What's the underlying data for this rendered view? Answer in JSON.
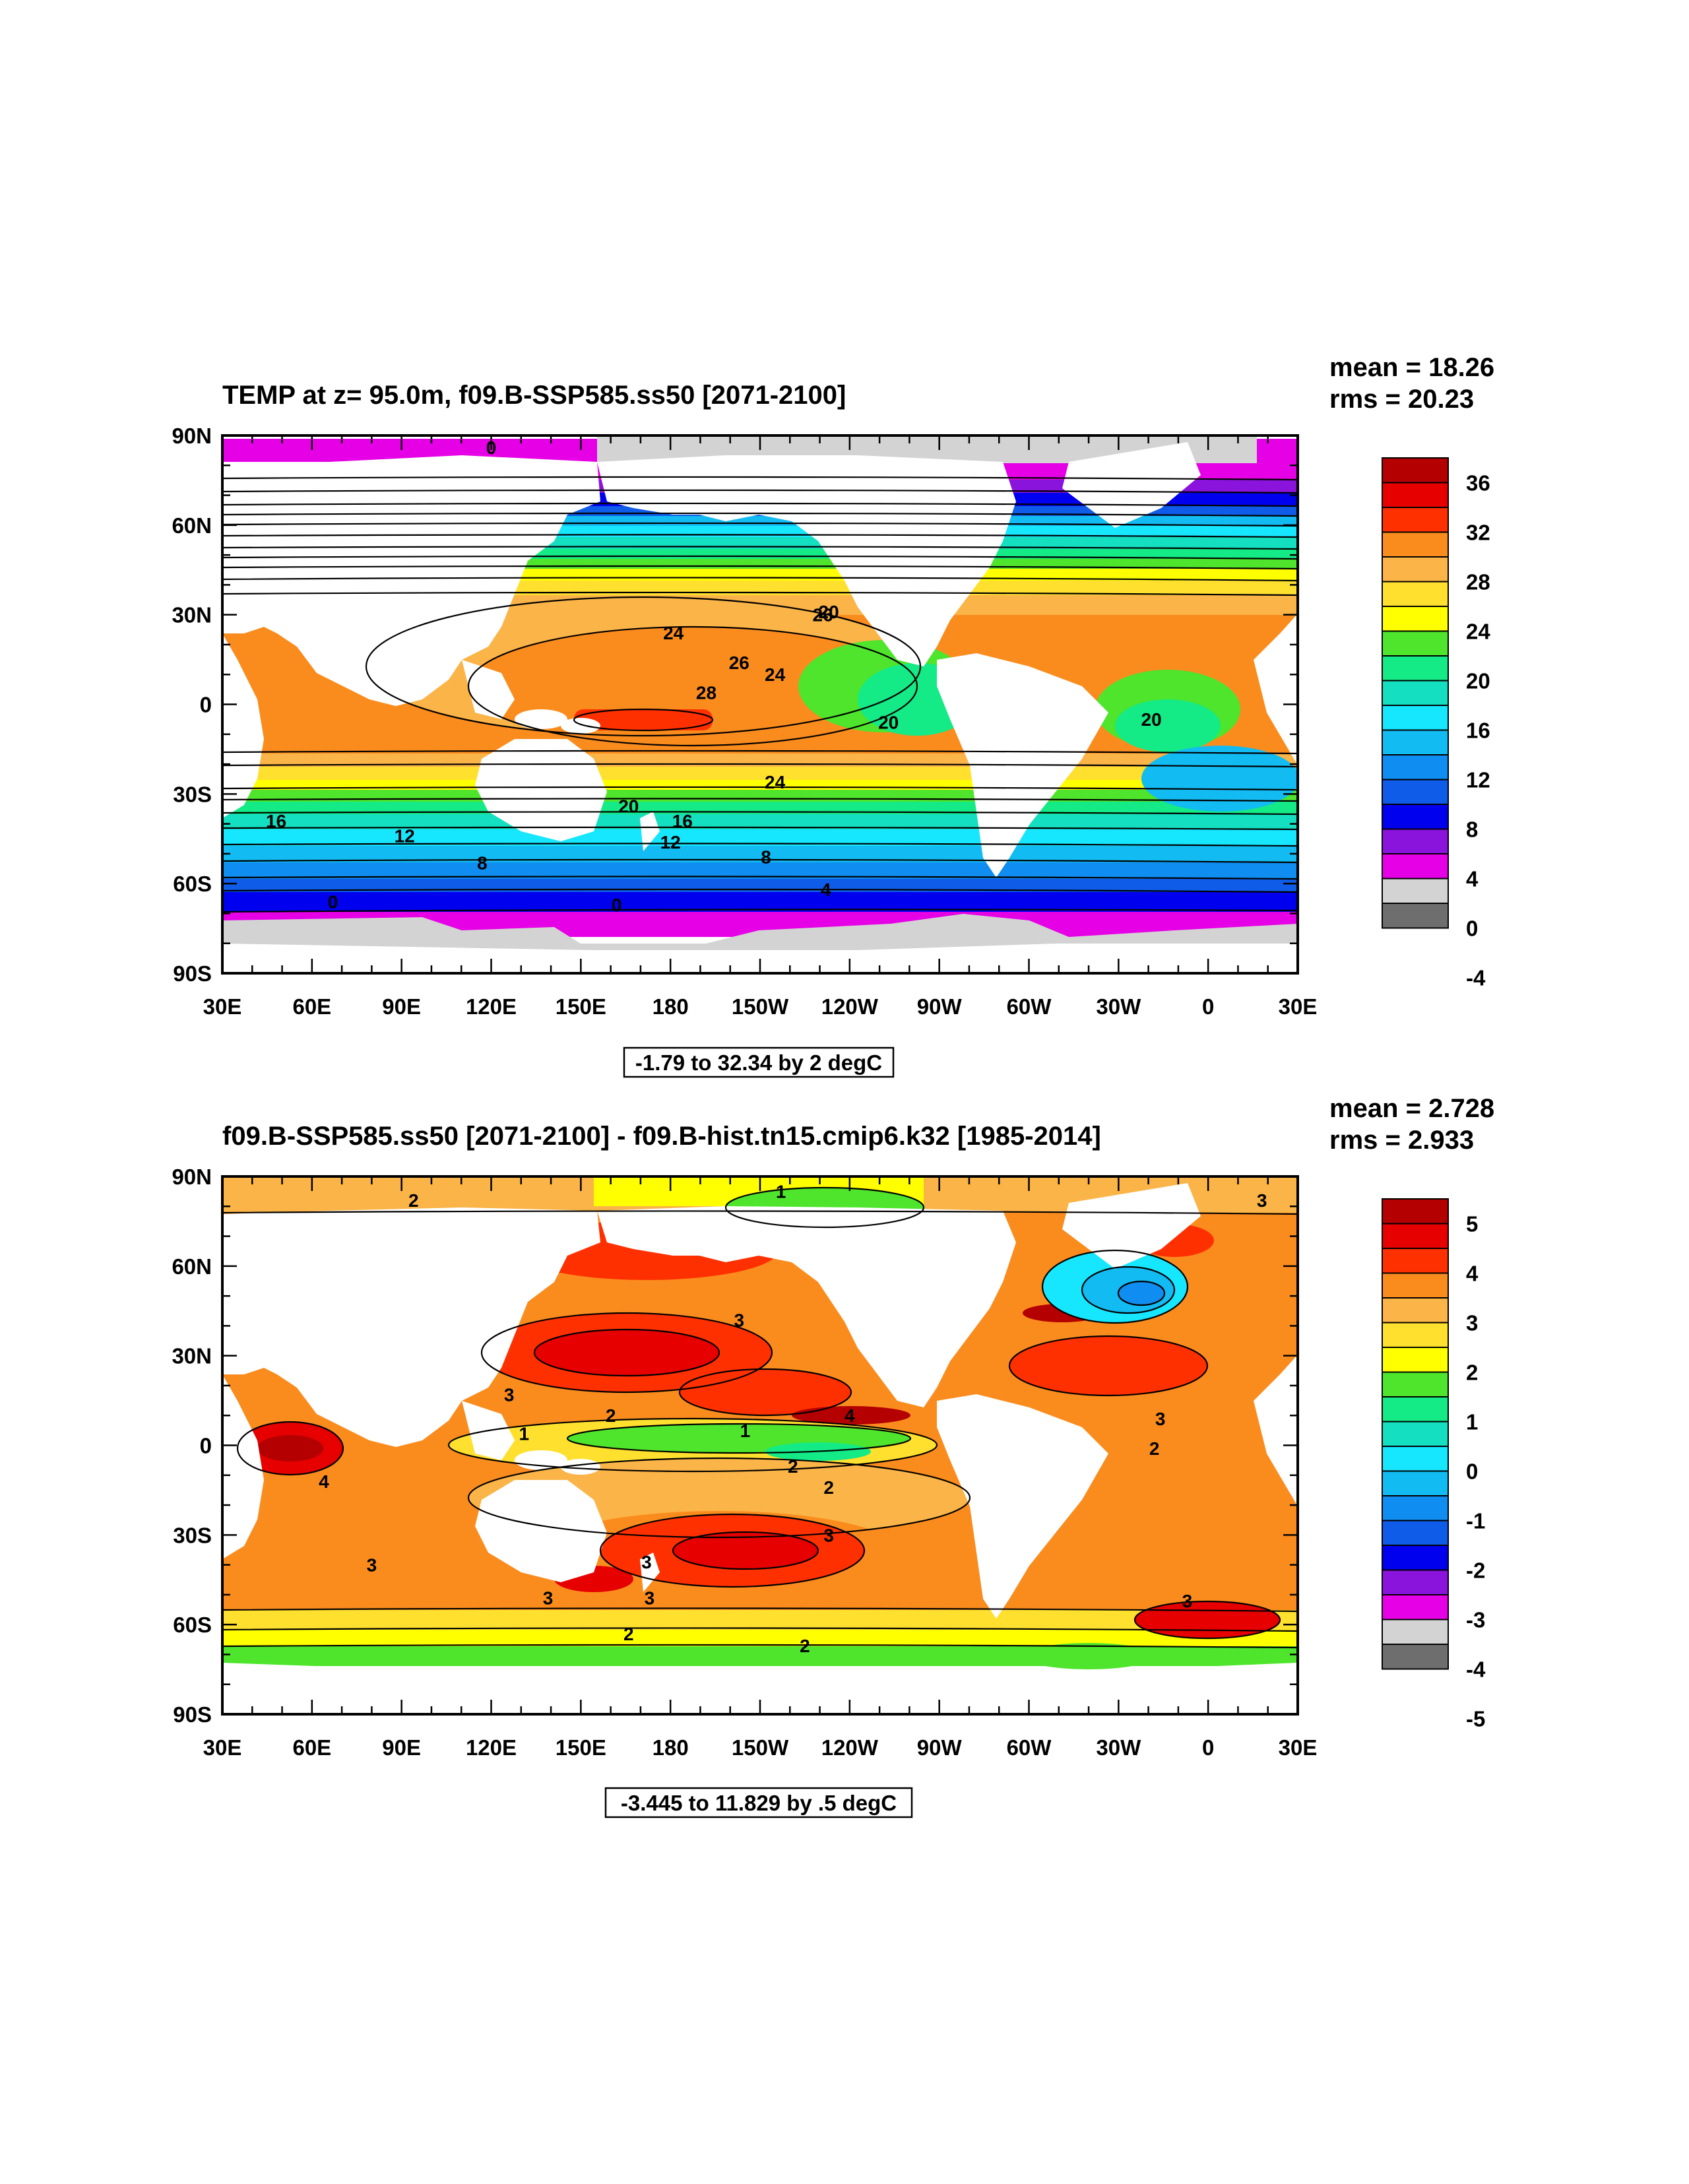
{
  "chart_data": [
    {
      "type": "heatmap",
      "title": "TEMP at z=  95.0m, f09.B-SSP585.ss50 [2071-2100]",
      "stats": [
        "mean = 18.26",
        "rms = 20.23"
      ],
      "contour_info": "-1.79 to 32.34 by 2 degC",
      "x_ticks": [
        "30E",
        "60E",
        "90E",
        "120E",
        "150E",
        "180",
        "150W",
        "120W",
        "90W",
        "60W",
        "30W",
        "0",
        "30E"
      ],
      "y_ticks": [
        "90N",
        "60N",
        "30N",
        "0",
        "30S",
        "60S",
        "90S"
      ],
      "xlim": [
        30,
        390
      ],
      "ylim": [
        -90,
        90
      ],
      "contour_labels": [
        {
          "text": "0",
          "lon": 120,
          "lat": 86
        },
        {
          "text": "24",
          "lon": 181,
          "lat": 24
        },
        {
          "text": "26",
          "lon": 231,
          "lat": 30
        },
        {
          "text": "20",
          "lon": 233,
          "lat": 31
        },
        {
          "text": "26",
          "lon": 203,
          "lat": 14
        },
        {
          "text": "24",
          "lon": 215,
          "lat": 10
        },
        {
          "text": "28",
          "lon": 192,
          "lat": 4
        },
        {
          "text": "20",
          "lon": 253,
          "lat": -6
        },
        {
          "text": "20",
          "lon": 341,
          "lat": -5
        },
        {
          "text": "24",
          "lon": 215,
          "lat": -26
        },
        {
          "text": "20",
          "lon": 166,
          "lat": -34
        },
        {
          "text": "16",
          "lon": 48,
          "lat": -39
        },
        {
          "text": "16",
          "lon": 184,
          "lat": -39
        },
        {
          "text": "12",
          "lon": 91,
          "lat": -44
        },
        {
          "text": "12",
          "lon": 180,
          "lat": -46
        },
        {
          "text": "8",
          "lon": 117,
          "lat": -53
        },
        {
          "text": "8",
          "lon": 212,
          "lat": -51
        },
        {
          "text": "4",
          "lon": 232,
          "lat": -62
        },
        {
          "text": "0",
          "lon": 67,
          "lat": -66
        },
        {
          "text": "0",
          "lon": 162,
          "lat": -67
        }
      ],
      "colorbar": {
        "labels": [
          "36",
          "32",
          "28",
          "24",
          "20",
          "16",
          "12",
          "8",
          "4",
          "0",
          "-4"
        ],
        "colors": [
          "#b40000",
          "#e60000",
          "#ff3000",
          "#fa8c1e",
          "#fbb447",
          "#ffe02e",
          "#ffff00",
          "#4ee52c",
          "#14ea86",
          "#14dfc0",
          "#17e6ff",
          "#12bbf2",
          "#0f8df0",
          "#0f5ce8",
          "#0000ef",
          "#8a14db",
          "#e600e6",
          "#d3d3d3",
          "#6e6e6e"
        ]
      }
    },
    {
      "type": "heatmap",
      "title": "f09.B-SSP585.ss50 [2071-2100] - f09.B-hist.tn15.cmip6.k32 [1985-2014]",
      "stats": [
        "mean = 2.728",
        "rms = 2.933"
      ],
      "contour_info": "-3.445 to 11.829 by .5 degC",
      "x_ticks": [
        "30E",
        "60E",
        "90E",
        "120E",
        "150E",
        "180",
        "150W",
        "120W",
        "90W",
        "60W",
        "30W",
        "0",
        "30E"
      ],
      "y_ticks": [
        "90N",
        "60N",
        "30N",
        "0",
        "30S",
        "60S",
        "90S"
      ],
      "xlim": [
        30,
        390
      ],
      "ylim": [
        -90,
        90
      ],
      "contour_labels": [
        {
          "text": "2",
          "lon": 94,
          "lat": 82
        },
        {
          "text": "1",
          "lon": 217,
          "lat": 85
        },
        {
          "text": "3",
          "lon": 378,
          "lat": 82
        },
        {
          "text": "3",
          "lon": 203,
          "lat": 42
        },
        {
          "text": "3",
          "lon": 126,
          "lat": 17
        },
        {
          "text": "2",
          "lon": 160,
          "lat": 10
        },
        {
          "text": "1",
          "lon": 131,
          "lat": 4
        },
        {
          "text": "1",
          "lon": 205,
          "lat": 5
        },
        {
          "text": "4",
          "lon": 240,
          "lat": 10
        },
        {
          "text": "3",
          "lon": 344,
          "lat": 9
        },
        {
          "text": "2",
          "lon": 342,
          "lat": -1
        },
        {
          "text": "2",
          "lon": 221,
          "lat": -7
        },
        {
          "text": "2",
          "lon": 233,
          "lat": -14
        },
        {
          "text": "4",
          "lon": 64,
          "lat": -12
        },
        {
          "text": "3",
          "lon": 233,
          "lat": -30
        },
        {
          "text": "3",
          "lon": 172,
          "lat": -39
        },
        {
          "text": "3",
          "lon": 80,
          "lat": -40
        },
        {
          "text": "3",
          "lon": 139,
          "lat": -51
        },
        {
          "text": "3",
          "lon": 173,
          "lat": -51
        },
        {
          "text": "3",
          "lon": 353,
          "lat": -52
        },
        {
          "text": "2",
          "lon": 166,
          "lat": -63
        },
        {
          "text": "2",
          "lon": 225,
          "lat": -67
        }
      ],
      "colorbar": {
        "labels": [
          "5",
          "4",
          "3",
          "2",
          "1",
          "0",
          "-1",
          "-2",
          "-3",
          "-4",
          "-5"
        ],
        "colors": [
          "#b40000",
          "#e60000",
          "#ff3000",
          "#fa8c1e",
          "#fbb447",
          "#ffe02e",
          "#ffff00",
          "#4ee52c",
          "#14ea86",
          "#14dfc0",
          "#17e6ff",
          "#12bbf2",
          "#0f8df0",
          "#0f5ce8",
          "#0000ef",
          "#8a14db",
          "#e600e6",
          "#d3d3d3",
          "#6e6e6e"
        ]
      }
    }
  ]
}
